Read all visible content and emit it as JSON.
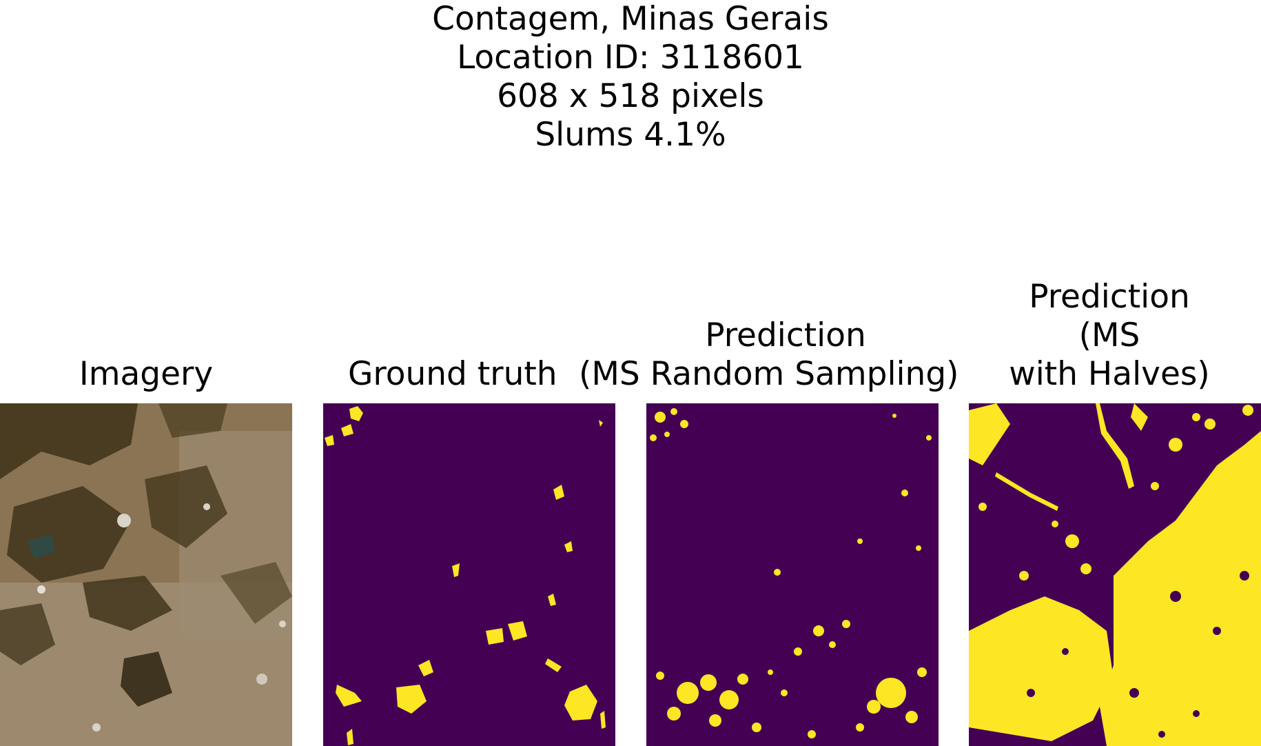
{
  "figure": {
    "title_lines": [
      "Contagem, Minas Gerais",
      "Location ID: 3118601",
      "608 x 518 pixels",
      "Slums 4.1%"
    ]
  },
  "panels": [
    {
      "title_lines": [
        "Imagery"
      ]
    },
    {
      "title_lines": [
        "Ground truth"
      ]
    },
    {
      "title_lines": [
        "Prediction",
        "(MS Random Sampling)"
      ]
    },
    {
      "title_lines": [
        "Prediction",
        "(MS",
        "with Halves)"
      ]
    }
  ],
  "colors": {
    "mask_background": "#440154",
    "mask_foreground": "#fde725",
    "imagery_base": "#8a7454",
    "imagery_dark": "#3e3218",
    "imagery_light": "#b9a88f"
  }
}
